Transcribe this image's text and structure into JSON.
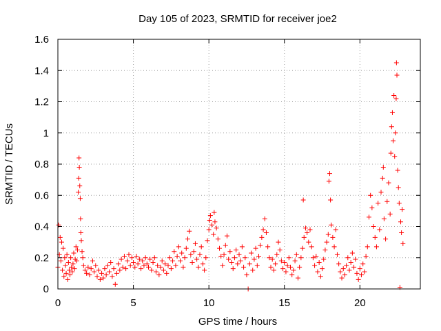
{
  "chart_data": {
    "type": "scatter",
    "title": "Day 105 of 2023, SRMTID for receiver joe2",
    "xlabel": "GPS time / hours",
    "ylabel": "SRMTID / TECUs",
    "xlim": [
      0,
      24
    ],
    "ylim": [
      0,
      1.6
    ],
    "x_ticks": [
      0,
      5,
      10,
      15,
      20
    ],
    "x_tick_labels": [
      "0",
      "5",
      "10",
      "15",
      "20"
    ],
    "y_ticks": [
      0,
      0.2,
      0.4,
      0.6,
      0.8,
      1,
      1.2,
      1.4,
      1.6
    ],
    "y_tick_labels": [
      "0",
      "0.2",
      "0.4",
      "0.6",
      "0.8",
      "1",
      "1.2",
      "1.4",
      "1.6"
    ],
    "grid": true,
    "marker": "plus",
    "color": "#ff0000",
    "series": [
      {
        "name": "SRMTID",
        "points": [
          [
            0.0,
            0.14
          ],
          [
            0.05,
            0.41
          ],
          [
            0.1,
            0.22
          ],
          [
            0.15,
            0.33
          ],
          [
            0.2,
            0.18
          ],
          [
            0.25,
            0.3
          ],
          [
            0.3,
            0.12
          ],
          [
            0.35,
            0.26
          ],
          [
            0.4,
            0.08
          ],
          [
            0.45,
            0.2
          ],
          [
            0.5,
            0.15
          ],
          [
            0.55,
            0.1
          ],
          [
            0.6,
            0.22
          ],
          [
            0.65,
            0.06
          ],
          [
            0.7,
            0.17
          ],
          [
            0.75,
            0.12
          ],
          [
            0.8,
            0.09
          ],
          [
            0.85,
            0.2
          ],
          [
            0.9,
            0.14
          ],
          [
            0.95,
            0.11
          ],
          [
            1.0,
            0.16
          ],
          [
            1.05,
            0.23
          ],
          [
            1.1,
            0.13
          ],
          [
            1.15,
            0.19
          ],
          [
            1.2,
            0.27
          ],
          [
            1.25,
            0.18
          ],
          [
            1.3,
            0.25
          ],
          [
            1.35,
            0.62
          ],
          [
            1.38,
            0.71
          ],
          [
            1.4,
            0.84
          ],
          [
            1.42,
            0.78
          ],
          [
            1.45,
            0.66
          ],
          [
            1.48,
            0.58
          ],
          [
            1.5,
            0.45
          ],
          [
            1.52,
            0.36
          ],
          [
            1.55,
            0.31
          ],
          [
            1.6,
            0.24
          ],
          [
            1.65,
            0.2
          ],
          [
            1.7,
            0.15
          ],
          [
            1.8,
            0.12
          ],
          [
            1.9,
            0.1
          ],
          [
            2.0,
            0.14
          ],
          [
            2.1,
            0.09
          ],
          [
            2.2,
            0.13
          ],
          [
            2.3,
            0.18
          ],
          [
            2.4,
            0.11
          ],
          [
            2.5,
            0.15
          ],
          [
            2.6,
            0.08
          ],
          [
            2.7,
            0.12
          ],
          [
            2.8,
            0.06
          ],
          [
            2.9,
            0.1
          ],
          [
            3.0,
            0.07
          ],
          [
            3.1,
            0.13
          ],
          [
            3.2,
            0.09
          ],
          [
            3.3,
            0.15
          ],
          [
            3.4,
            0.11
          ],
          [
            3.5,
            0.17
          ],
          [
            3.6,
            0.08
          ],
          [
            3.7,
            0.13
          ],
          [
            3.8,
            0.03
          ],
          [
            3.9,
            0.1
          ],
          [
            4.0,
            0.16
          ],
          [
            4.1,
            0.12
          ],
          [
            4.2,
            0.19
          ],
          [
            4.3,
            0.14
          ],
          [
            4.4,
            0.21
          ],
          [
            4.5,
            0.13
          ],
          [
            4.6,
            0.18
          ],
          [
            4.7,
            0.22
          ],
          [
            4.8,
            0.15
          ],
          [
            4.9,
            0.2
          ],
          [
            5.0,
            0.17
          ],
          [
            5.1,
            0.14
          ],
          [
            5.2,
            0.21
          ],
          [
            5.3,
            0.16
          ],
          [
            5.4,
            0.19
          ],
          [
            5.5,
            0.13
          ],
          [
            5.6,
            0.18
          ],
          [
            5.7,
            0.15
          ],
          [
            5.8,
            0.2
          ],
          [
            5.9,
            0.16
          ],
          [
            6.0,
            0.14
          ],
          [
            6.1,
            0.19
          ],
          [
            6.2,
            0.12
          ],
          [
            6.3,
            0.17
          ],
          [
            6.4,
            0.2
          ],
          [
            6.5,
            0.11
          ],
          [
            6.6,
            0.15
          ],
          [
            6.7,
            0.09
          ],
          [
            6.8,
            0.14
          ],
          [
            6.9,
            0.18
          ],
          [
            7.0,
            0.12
          ],
          [
            7.1,
            0.16
          ],
          [
            7.2,
            0.1
          ],
          [
            7.3,
            0.15
          ],
          [
            7.4,
            0.2
          ],
          [
            7.5,
            0.13
          ],
          [
            7.6,
            0.18
          ],
          [
            7.7,
            0.24
          ],
          [
            7.8,
            0.15
          ],
          [
            7.9,
            0.21
          ],
          [
            8.0,
            0.27
          ],
          [
            8.1,
            0.18
          ],
          [
            8.2,
            0.23
          ],
          [
            8.3,
            0.14
          ],
          [
            8.4,
            0.2
          ],
          [
            8.5,
            0.26
          ],
          [
            8.6,
            0.32
          ],
          [
            8.7,
            0.37
          ],
          [
            8.8,
            0.22
          ],
          [
            8.9,
            0.17
          ],
          [
            9.0,
            0.24
          ],
          [
            9.1,
            0.29
          ],
          [
            9.2,
            0.19
          ],
          [
            9.3,
            0.14
          ],
          [
            9.4,
            0.22
          ],
          [
            9.5,
            0.27
          ],
          [
            9.6,
            0.16
          ],
          [
            9.7,
            0.12
          ],
          [
            9.8,
            0.2
          ],
          [
            9.9,
            0.31
          ],
          [
            10.0,
            0.38
          ],
          [
            10.05,
            0.44
          ],
          [
            10.1,
            0.47
          ],
          [
            10.2,
            0.41
          ],
          [
            10.3,
            0.35
          ],
          [
            10.35,
            0.49
          ],
          [
            10.4,
            0.43
          ],
          [
            10.5,
            0.39
          ],
          [
            10.6,
            0.32
          ],
          [
            10.7,
            0.26
          ],
          [
            10.8,
            0.21
          ],
          [
            10.9,
            0.15
          ],
          [
            11.0,
            0.22
          ],
          [
            11.1,
            0.28
          ],
          [
            11.2,
            0.34
          ],
          [
            11.3,
            0.19
          ],
          [
            11.4,
            0.24
          ],
          [
            11.5,
            0.17
          ],
          [
            11.6,
            0.13
          ],
          [
            11.7,
            0.2
          ],
          [
            11.8,
            0.25
          ],
          [
            11.9,
            0.16
          ],
          [
            12.0,
            0.22
          ],
          [
            12.1,
            0.18
          ],
          [
            12.2,
            0.27
          ],
          [
            12.3,
            0.14
          ],
          [
            12.4,
            0.2
          ],
          [
            12.5,
            0.09
          ],
          [
            12.6,
            0.0
          ],
          [
            12.7,
            0.16
          ],
          [
            12.8,
            0.23
          ],
          [
            12.9,
            0.12
          ],
          [
            13.0,
            0.19
          ],
          [
            13.1,
            0.26
          ],
          [
            13.2,
            0.15
          ],
          [
            13.3,
            0.21
          ],
          [
            13.4,
            0.28
          ],
          [
            13.5,
            0.33
          ],
          [
            13.6,
            0.38
          ],
          [
            13.7,
            0.45
          ],
          [
            13.8,
            0.36
          ],
          [
            13.9,
            0.27
          ],
          [
            14.0,
            0.2
          ],
          [
            14.1,
            0.14
          ],
          [
            14.2,
            0.19
          ],
          [
            14.3,
            0.12
          ],
          [
            14.4,
            0.16
          ],
          [
            14.5,
            0.22
          ],
          [
            14.6,
            0.3
          ],
          [
            14.7,
            0.25
          ],
          [
            14.8,
            0.18
          ],
          [
            14.9,
            0.13
          ],
          [
            15.0,
            0.17
          ],
          [
            15.1,
            0.11
          ],
          [
            15.2,
            0.15
          ],
          [
            15.3,
            0.2
          ],
          [
            15.4,
            0.14
          ],
          [
            15.5,
            0.09
          ],
          [
            15.6,
            0.12
          ],
          [
            15.7,
            0.18
          ],
          [
            15.8,
            0.22
          ],
          [
            15.9,
            0.07
          ],
          [
            16.0,
            0.14
          ],
          [
            16.1,
            0.2
          ],
          [
            16.2,
            0.26
          ],
          [
            16.25,
            0.57
          ],
          [
            16.3,
            0.33
          ],
          [
            16.4,
            0.39
          ],
          [
            16.5,
            0.36
          ],
          [
            16.6,
            0.3
          ],
          [
            16.7,
            0.38
          ],
          [
            16.8,
            0.27
          ],
          [
            16.9,
            0.2
          ],
          [
            17.0,
            0.15
          ],
          [
            17.1,
            0.21
          ],
          [
            17.2,
            0.11
          ],
          [
            17.3,
            0.17
          ],
          [
            17.4,
            0.08
          ],
          [
            17.5,
            0.13
          ],
          [
            17.6,
            0.19
          ],
          [
            17.7,
            0.25
          ],
          [
            17.8,
            0.3
          ],
          [
            17.9,
            0.35
          ],
          [
            17.95,
            0.69
          ],
          [
            18.0,
            0.74
          ],
          [
            18.05,
            0.57
          ],
          [
            18.1,
            0.41
          ],
          [
            18.2,
            0.33
          ],
          [
            18.3,
            0.27
          ],
          [
            18.4,
            0.38
          ],
          [
            18.5,
            0.22
          ],
          [
            18.6,
            0.16
          ],
          [
            18.7,
            0.11
          ],
          [
            18.8,
            0.07
          ],
          [
            18.9,
            0.13
          ],
          [
            19.0,
            0.09
          ],
          [
            19.1,
            0.15
          ],
          [
            19.2,
            0.2
          ],
          [
            19.3,
            0.12
          ],
          [
            19.4,
            0.17
          ],
          [
            19.5,
            0.23
          ],
          [
            19.6,
            0.14
          ],
          [
            19.7,
            0.19
          ],
          [
            19.8,
            0.1
          ],
          [
            19.9,
            0.06
          ],
          [
            20.0,
            0.13
          ],
          [
            20.1,
            0.09
          ],
          [
            20.2,
            0.16
          ],
          [
            20.3,
            0.11
          ],
          [
            20.4,
            0.21
          ],
          [
            20.5,
            0.27
          ],
          [
            20.6,
            0.46
          ],
          [
            20.7,
            0.6
          ],
          [
            20.8,
            0.52
          ],
          [
            20.9,
            0.4
          ],
          [
            21.0,
            0.33
          ],
          [
            21.1,
            0.27
          ],
          [
            21.2,
            0.55
          ],
          [
            21.3,
            0.38
          ],
          [
            21.4,
            0.62
          ],
          [
            21.5,
            0.71
          ],
          [
            21.55,
            0.78
          ],
          [
            21.6,
            0.45
          ],
          [
            21.7,
            0.32
          ],
          [
            21.8,
            0.56
          ],
          [
            21.9,
            0.68
          ],
          [
            22.0,
            0.48
          ],
          [
            22.05,
            0.87
          ],
          [
            22.1,
            1.04
          ],
          [
            22.15,
            1.13
          ],
          [
            22.2,
            0.95
          ],
          [
            22.25,
            1.24
          ],
          [
            22.3,
            0.85
          ],
          [
            22.35,
            1.0
          ],
          [
            22.4,
            1.22
          ],
          [
            22.42,
            1.45
          ],
          [
            22.45,
            1.37
          ],
          [
            22.5,
            0.76
          ],
          [
            22.55,
            0.65
          ],
          [
            22.6,
            0.55
          ],
          [
            22.65,
            0.01
          ],
          [
            22.7,
            0.43
          ],
          [
            22.75,
            0.36
          ],
          [
            22.8,
            0.51
          ],
          [
            22.85,
            0.29
          ]
        ]
      }
    ]
  }
}
